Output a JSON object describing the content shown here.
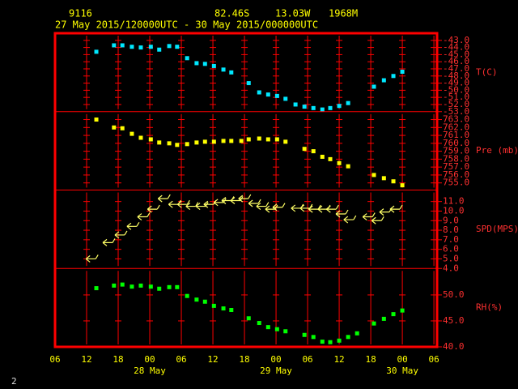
{
  "header": {
    "station": "9116",
    "latitude": "82.46S",
    "longitude": "13.03W",
    "elevation": "1968M",
    "period": "27 May 2015/120000UTC - 30 May 2015/000000UTC"
  },
  "page_number": "2",
  "chart_data": [
    {
      "type": "scatter",
      "ylabel": "T(C)",
      "color": "#00e8ff",
      "x": [
        7.85,
        11.2,
        12.8,
        14.6,
        16.3,
        18.2,
        19.8,
        21.7,
        23.2,
        25.1,
        26.9,
        28.5,
        30.2,
        32,
        33.5,
        36.8,
        38.8,
        40.5,
        42.2,
        43.8,
        45.7,
        47.4,
        49.1,
        50.8,
        52.3,
        54,
        55.7,
        60.6,
        62.5,
        64.3,
        66
      ],
      "values": [
        -44.6,
        -43.7,
        -43.7,
        -43.9,
        -44.0,
        -43.9,
        -44.3,
        -43.8,
        -43.9,
        -45.5,
        -46.2,
        -46.3,
        -46.6,
        -47.1,
        -47.5,
        -49.0,
        -50.3,
        -50.6,
        -50.8,
        -51.2,
        -52.0,
        -52.3,
        -52.5,
        -52.7,
        -52.5,
        -52.2,
        -51.8,
        -49.5,
        -48.6,
        -48.0,
        -47.4
      ],
      "xlim": [
        0,
        72.6
      ],
      "ylim": [
        -53,
        -42
      ],
      "yticks": [
        {
          "value": -43,
          "label": "-43.0"
        },
        {
          "value": -44,
          "label": "-44.0"
        },
        {
          "value": -45,
          "label": "-45.0"
        },
        {
          "value": -46,
          "label": "-46.0"
        },
        {
          "value": -47,
          "label": "-47.0"
        },
        {
          "value": -48,
          "label": "-48.0"
        },
        {
          "value": -49,
          "label": "-49.0"
        },
        {
          "value": -50,
          "label": "-50.0"
        },
        {
          "value": -51,
          "label": "-51.0"
        },
        {
          "value": -52,
          "label": "-52.0"
        },
        {
          "value": -53,
          "label": "-53.0"
        }
      ]
    },
    {
      "type": "scatter",
      "ylabel": "Pre (mb)",
      "color": "#ffff00",
      "x": [
        7.85,
        11.2,
        12.8,
        14.6,
        16.3,
        18.2,
        19.8,
        21.7,
        23.2,
        25.1,
        26.9,
        28.5,
        30.2,
        32,
        33.5,
        35.4,
        36.8,
        38.8,
        40.5,
        42.2,
        43.8,
        47.4,
        49.1,
        50.8,
        52.3,
        54,
        55.7,
        60.6,
        62.5,
        64.3,
        66
      ],
      "values": [
        763.0,
        762.0,
        761.9,
        761.2,
        760.7,
        760.5,
        760.1,
        760.0,
        759.8,
        759.9,
        760.1,
        760.2,
        760.2,
        760.3,
        760.3,
        760.3,
        760.5,
        760.6,
        760.5,
        760.5,
        760.2,
        759.3,
        759.0,
        758.3,
        758.0,
        757.5,
        757.1,
        756.0,
        755.6,
        755.2,
        754.7
      ],
      "xlim": [
        0,
        72.6
      ],
      "ylim": [
        754.1,
        764
      ],
      "yticks": [
        {
          "value": 763,
          "label": "763.0"
        },
        {
          "value": 762,
          "label": "762.0"
        },
        {
          "value": 761,
          "label": "761.0"
        },
        {
          "value": 760,
          "label": "760.0"
        },
        {
          "value": 759,
          "label": "759.0"
        },
        {
          "value": 758,
          "label": "758.0"
        },
        {
          "value": 757,
          "label": "757.0"
        },
        {
          "value": 756,
          "label": "756.0"
        },
        {
          "value": 755,
          "label": "755.0"
        }
      ]
    },
    {
      "type": "barbs",
      "ylabel": "SPD(MPS)",
      "color": "#ffff66",
      "x": [
        6.8,
        10,
        12.3,
        14.6,
        16.6,
        18.5,
        20.5,
        22.5,
        24.2,
        25.8,
        27.7,
        29.2,
        31.1,
        32.6,
        34.3,
        35.8,
        37.7,
        39.2,
        40.9,
        42.3,
        45.8,
        47.5,
        49.1,
        50.9,
        52.5,
        54.3,
        55.8,
        59.4,
        61.1,
        62.6,
        64.6
      ],
      "values": [
        5.0,
        6.7,
        7.5,
        8.4,
        9.4,
        10.2,
        11.3,
        10.7,
        10.7,
        10.5,
        10.5,
        10.7,
        10.9,
        11.1,
        11.1,
        11.3,
        10.8,
        10.5,
        10.2,
        10.4,
        10.3,
        10.3,
        10.2,
        10.2,
        10.2,
        9.7,
        9.1,
        9.4,
        9.0,
        9.9,
        10.2
      ],
      "xlim": [
        0,
        72.6
      ],
      "ylim": [
        4,
        12.2
      ],
      "yticks": [
        {
          "value": 11,
          "label": "11.0"
        },
        {
          "value": 10,
          "label": "10.0"
        },
        {
          "value": 9,
          "label": "9.0"
        },
        {
          "value": 8,
          "label": "8.0"
        },
        {
          "value": 7,
          "label": "7.0"
        },
        {
          "value": 6,
          "label": "6.0"
        },
        {
          "value": 5,
          "label": "5.0"
        },
        {
          "value": 4,
          "label": "4.0"
        }
      ]
    },
    {
      "type": "scatter",
      "ylabel": "RH(%)",
      "color": "#00ff00",
      "x": [
        7.85,
        11.2,
        12.8,
        14.6,
        16.3,
        18.2,
        19.8,
        21.7,
        23.2,
        25.1,
        26.9,
        28.5,
        30.2,
        32,
        33.5,
        36.8,
        38.8,
        40.5,
        42.2,
        43.8,
        47.4,
        49.1,
        50.8,
        52.3,
        54,
        55.7,
        57.4,
        60.6,
        62.5,
        64.3,
        66
      ],
      "values": [
        51.3,
        51.8,
        52.0,
        51.6,
        51.8,
        51.6,
        51.2,
        51.5,
        51.5,
        49.8,
        49.1,
        48.7,
        47.9,
        47.4,
        47.1,
        45.5,
        44.6,
        43.8,
        43.4,
        43.0,
        42.3,
        41.9,
        41.0,
        40.9,
        41.2,
        41.9,
        42.6,
        44.5,
        45.4,
        46.3,
        47.0
      ],
      "xlim": [
        0,
        72.6
      ],
      "ylim": [
        40,
        55.1
      ],
      "yticks": [
        {
          "value": 50,
          "label": "50.0"
        },
        {
          "value": 45,
          "label": "45.0"
        },
        {
          "value": 40,
          "label": "40.0"
        }
      ],
      "xticks": [
        {
          "value": 0,
          "label": "06"
        },
        {
          "value": 6,
          "label": "12"
        },
        {
          "value": 12,
          "label": "18"
        },
        {
          "value": 18,
          "label": "00"
        },
        {
          "value": 24,
          "label": "06"
        },
        {
          "value": 30,
          "label": "12"
        },
        {
          "value": 36,
          "label": "18"
        },
        {
          "value": 42,
          "label": "00"
        },
        {
          "value": 48,
          "label": "06"
        },
        {
          "value": 54,
          "label": "12"
        },
        {
          "value": 60,
          "label": "18"
        },
        {
          "value": 66,
          "label": "00"
        },
        {
          "value": 72,
          "label": "06"
        }
      ],
      "day_ticks": [
        {
          "value": 18,
          "label": "28 May"
        },
        {
          "value": 42,
          "label": "29 May"
        },
        {
          "value": 66,
          "label": "30 May"
        }
      ]
    }
  ]
}
